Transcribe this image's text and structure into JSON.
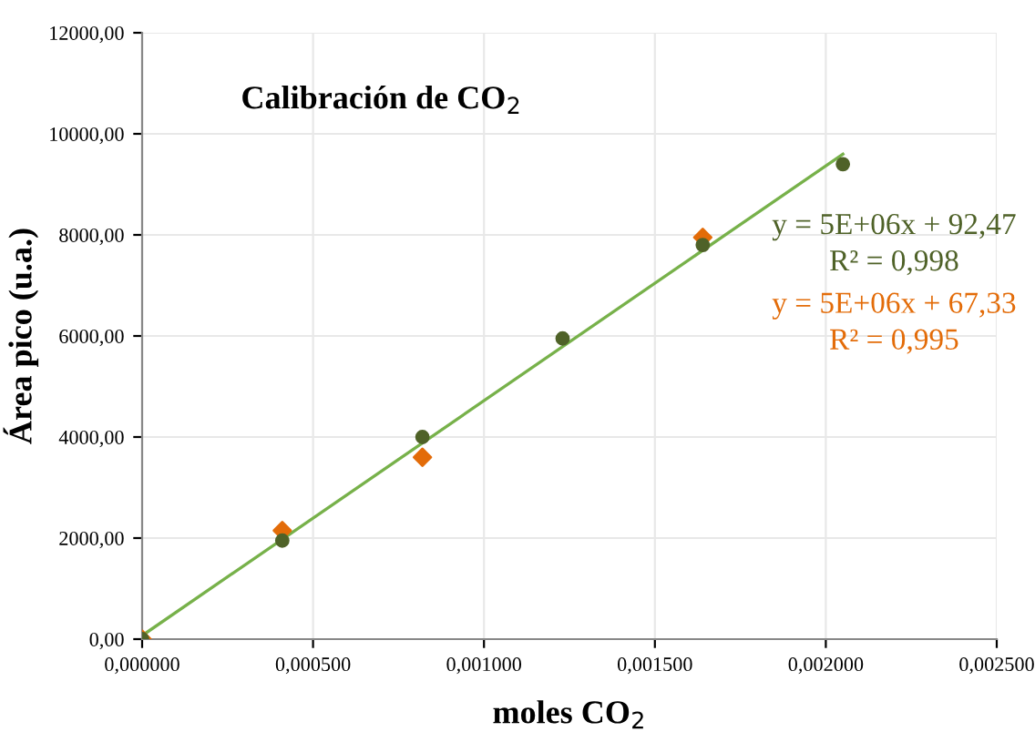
{
  "chart_data": {
    "type": "scatter",
    "title": "Calibración de CO$_{2}$",
    "xlabel": "moles CO$_{2}$",
    "ylabel": "Área pico (u.a.)",
    "xlim": [
      0,
      0.0025
    ],
    "ylim": [
      0,
      12000
    ],
    "xticks": [
      {
        "value": 0,
        "label": "0,000000"
      },
      {
        "value": 0.0005,
        "label": "0,000500"
      },
      {
        "value": 0.001,
        "label": "0,001000"
      },
      {
        "value": 0.0015,
        "label": "0,001500"
      },
      {
        "value": 0.002,
        "label": "0,002000"
      },
      {
        "value": 0.0025,
        "label": "0,002500"
      }
    ],
    "yticks": [
      {
        "value": 0,
        "label": "0,00"
      },
      {
        "value": 2000,
        "label": "2000,00"
      },
      {
        "value": 4000,
        "label": "4000,00"
      },
      {
        "value": 6000,
        "label": "6000,00"
      },
      {
        "value": 8000,
        "label": "8000,00"
      },
      {
        "value": 10000,
        "label": "10000,00"
      },
      {
        "value": 12000,
        "label": "12000,00"
      }
    ],
    "grid": true,
    "series": [
      {
        "marker": "diamond",
        "color": "#e36c09",
        "x": [
          0,
          0.00041,
          0.00082,
          0.00164
        ],
        "values": [
          0,
          2150,
          3600,
          7950
        ]
      },
      {
        "marker": "circle",
        "color": "#4f6228",
        "x": [
          0,
          0.00041,
          0.00082,
          0.00123,
          0.00164,
          0.00205
        ],
        "values": [
          0,
          1950,
          4000,
          5950,
          7800,
          9400
        ]
      },
      {
        "type": "line",
        "marker": "none",
        "color": "#77b14a",
        "x": [
          0,
          0.00205
        ],
        "values": [
          70,
          9600
        ]
      }
    ],
    "annotations": [
      "y = 5E+06x + 92,47",
      "R² = 0,998",
      "y = 5E+06x + 67,33",
      "R² = 0,995"
    ]
  }
}
